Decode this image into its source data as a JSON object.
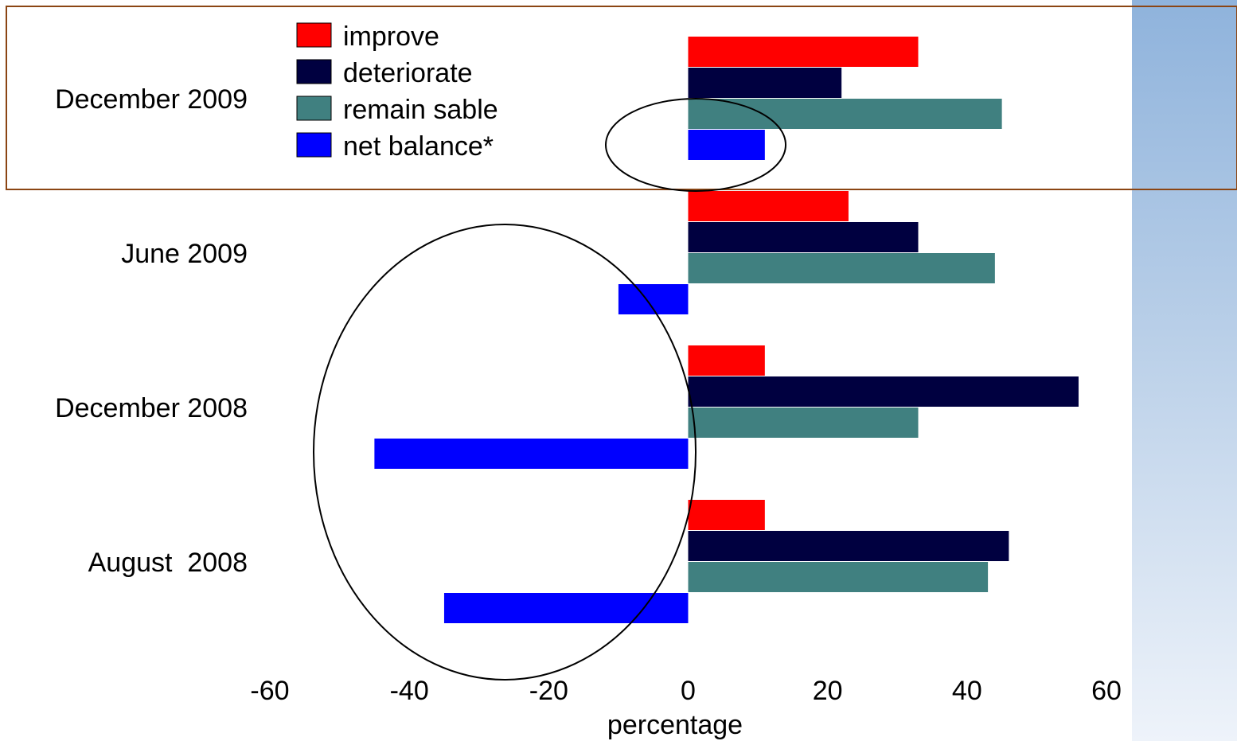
{
  "chart_data": {
    "type": "bar",
    "orientation": "horizontal",
    "categories": [
      "December 2009",
      "June 2009",
      "December 2008",
      "August  2008"
    ],
    "series": [
      {
        "name": "improve",
        "color": "#ff0000",
        "values": [
          33,
          23,
          11,
          11
        ]
      },
      {
        "name": "deteriorate",
        "color": "#000040",
        "values": [
          22,
          33,
          56,
          46
        ]
      },
      {
        "name": "remain sable",
        "color": "#408080",
        "values": [
          45,
          44,
          33,
          43
        ]
      },
      {
        "name": "net balance*",
        "color": "#0000ff",
        "values": [
          11,
          -10,
          -45,
          -35
        ]
      }
    ],
    "xlabel": "percentage",
    "xlim": [
      -60,
      60
    ],
    "xticks": [
      -60,
      -40,
      -20,
      0,
      20,
      40,
      60
    ],
    "xtick_labels": [
      "-60",
      "-40",
      "-20",
      "0",
      "20",
      "40",
      "60"
    ],
    "grid": false,
    "legend_position": "top-left",
    "highlight_box_color": "#8b4513",
    "annotation_ellipse_color": "#000000"
  }
}
